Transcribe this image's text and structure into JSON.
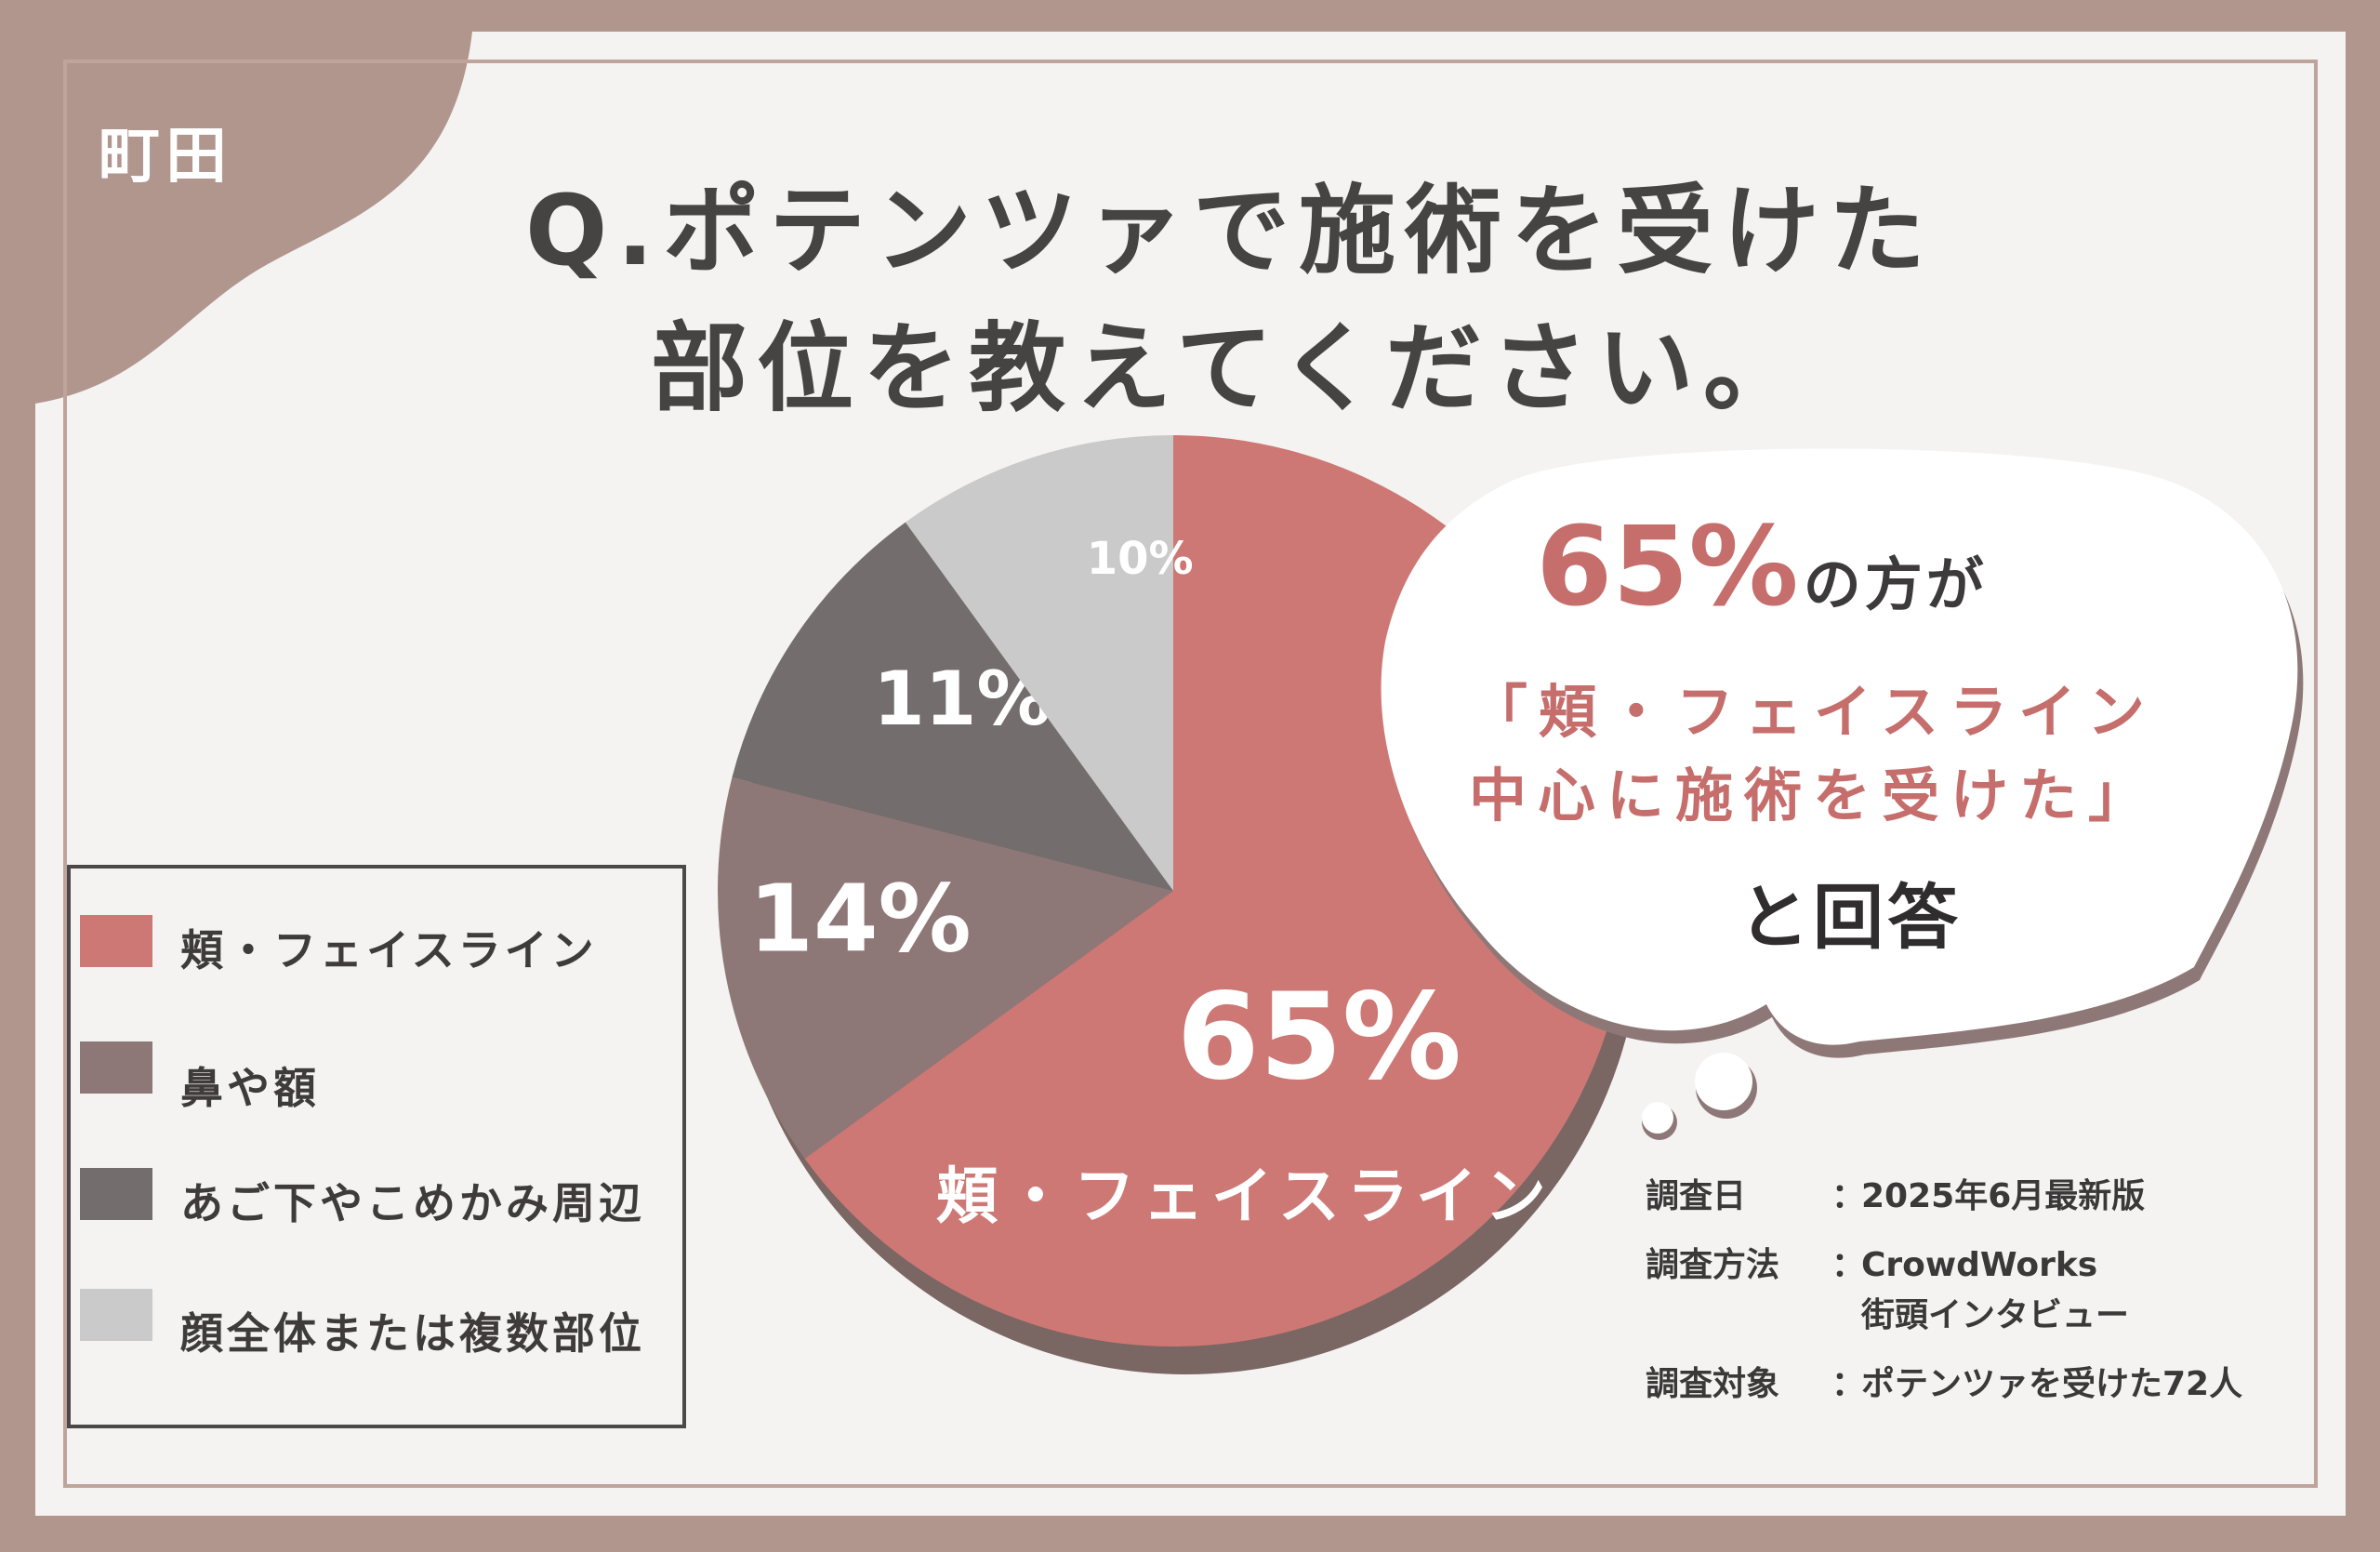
{
  "brand": "町田",
  "title_lines": [
    "Q.ポテンツァで施術を受けた",
    "部位を教えてください。"
  ],
  "chart_data": {
    "type": "pie",
    "categories": [
      "頬・フェイスライン",
      "鼻や額",
      "あご下やこめかみ周辺",
      "顔全体または複数部位"
    ],
    "values": [
      65,
      14,
      11,
      10
    ],
    "value_labels": [
      "65%",
      "14%",
      "11%",
      "10%"
    ],
    "slice_names": [
      "頬・フェイスライン",
      "",
      "",
      ""
    ],
    "colors": [
      "#cd7874",
      "#8e7877",
      "#736d6d",
      "#cbcaca"
    ],
    "start": "12 o'clock",
    "direction": "clockwise",
    "legend_position": "left"
  },
  "legend": {
    "items": [
      {
        "label": "頬・フェイスライン",
        "color": "#cd7874"
      },
      {
        "label": "鼻や額",
        "color": "#8e7877"
      },
      {
        "label": "あご下やこめかみ周辺",
        "color": "#736d6d"
      },
      {
        "label": "顔全体または複数部位",
        "color": "#cbcaca"
      }
    ]
  },
  "callout": {
    "percent": "65%",
    "after_percent": "の方が",
    "quote_line1": "「頬・フェイスライン",
    "quote_line2": "中心に施術を受けた」",
    "answer": "と回答"
  },
  "survey": {
    "date_key": "調査日",
    "date_value": "2025年6月最新版",
    "method_key": "調査方法",
    "method_value1": "CrowdWorks",
    "method_value2": "街頭インタビュー",
    "target_key": "調査対象",
    "target_value": "ポテンツァを受けた72人",
    "separator": "："
  },
  "colors": {
    "frame": "#b1968e",
    "card": "#f4f3f2",
    "accent": "#c56e6c",
    "text": "#464443"
  }
}
